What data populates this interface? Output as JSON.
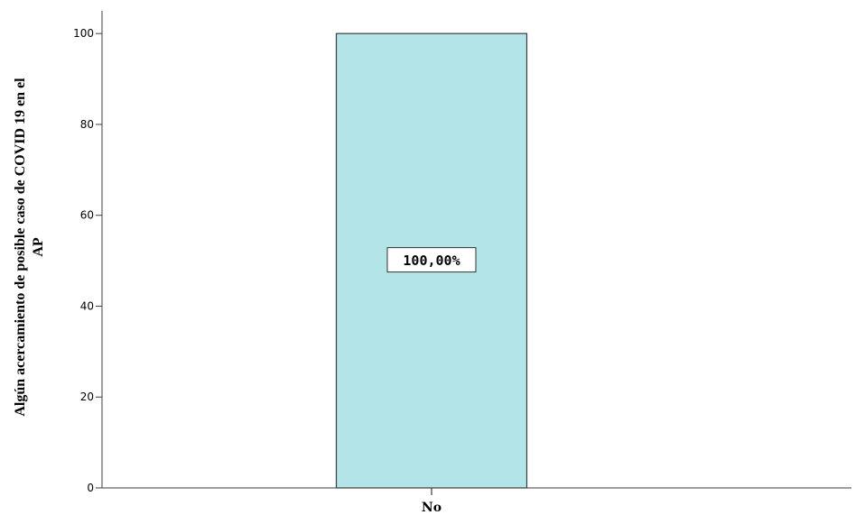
{
  "chart_data": {
    "type": "bar",
    "title": "",
    "xlabel": "",
    "ylabel_lines": [
      "Algún acercamiento de posible caso de COVID 19 en el",
      "AP"
    ],
    "categories": [
      "No"
    ],
    "values": [
      100
    ],
    "data_labels": [
      "100,00%"
    ],
    "ylim": [
      0,
      105
    ],
    "yticks": [
      0,
      20,
      40,
      60,
      80,
      100
    ],
    "ytick_labels": [
      "0",
      "20",
      "40",
      "60",
      "80",
      "100"
    ],
    "grid": false,
    "legend": "none",
    "colors": {
      "bar_fill": "#b3e4e7",
      "bar_stroke": "#3d3d3d",
      "axis": "#3d3d3d"
    }
  }
}
